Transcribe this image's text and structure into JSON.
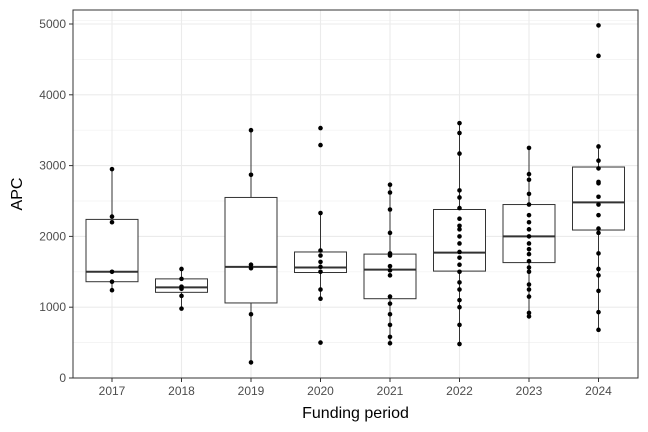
{
  "chart_data": {
    "type": "box",
    "title": "",
    "xlabel": "Funding period",
    "ylabel": "APC",
    "ylim": [
      0,
      5100
    ],
    "yticks": [
      0,
      1000,
      2000,
      3000,
      4000,
      5000
    ],
    "grid": true,
    "categories": [
      "2017",
      "2018",
      "2019",
      "2020",
      "2021",
      "2022",
      "2023",
      "2024"
    ],
    "boxes": [
      {
        "category": "2017",
        "q1": 1360,
        "median": 1500,
        "q3": 2240,
        "whisker_low": 1240,
        "whisker_high": 2950
      },
      {
        "category": "2018",
        "q1": 1210,
        "median": 1280,
        "q3": 1400,
        "whisker_low": 980,
        "whisker_high": 1540
      },
      {
        "category": "2019",
        "q1": 1060,
        "median": 1570,
        "q3": 2550,
        "whisker_low": 220,
        "whisker_high": 3500
      },
      {
        "category": "2020",
        "q1": 1490,
        "median": 1560,
        "q3": 1780,
        "whisker_low": 1120,
        "whisker_high": 2330
      },
      {
        "category": "2021",
        "q1": 1120,
        "median": 1530,
        "q3": 1750,
        "whisker_low": 490,
        "whisker_high": 2730
      },
      {
        "category": "2022",
        "q1": 1510,
        "median": 1770,
        "q3": 2380,
        "whisker_low": 480,
        "whisker_high": 3600
      },
      {
        "category": "2023",
        "q1": 1630,
        "median": 2000,
        "q3": 2450,
        "whisker_low": 870,
        "whisker_high": 3250
      },
      {
        "category": "2024",
        "q1": 2090,
        "median": 2480,
        "q3": 2980,
        "whisker_low": 680,
        "whisker_high": 3270
      }
    ],
    "points": [
      {
        "category": "2017",
        "values": [
          1240,
          1360,
          1500,
          2200,
          2280,
          2950
        ]
      },
      {
        "category": "2018",
        "values": [
          980,
          1160,
          1260,
          1290,
          1400,
          1540
        ]
      },
      {
        "category": "2019",
        "values": [
          220,
          900,
          1550,
          1600,
          2870,
          3500
        ]
      },
      {
        "category": "2020",
        "values": [
          500,
          1120,
          1250,
          1500,
          1570,
          1640,
          1730,
          1800,
          2330,
          3290,
          3530
        ]
      },
      {
        "category": "2021",
        "values": [
          490,
          580,
          750,
          900,
          1050,
          1150,
          1450,
          1520,
          1580,
          1730,
          1760,
          2050,
          2380,
          2620,
          2730
        ]
      },
      {
        "category": "2022",
        "values": [
          480,
          750,
          1000,
          1100,
          1250,
          1350,
          1500,
          1600,
          1700,
          1780,
          1900,
          2000,
          2100,
          2150,
          2250,
          2400,
          2550,
          2650,
          3170,
          3460,
          3600
        ]
      },
      {
        "category": "2023",
        "values": [
          870,
          920,
          1150,
          1250,
          1320,
          1500,
          1560,
          1650,
          1750,
          1820,
          1900,
          2000,
          2100,
          2200,
          2300,
          2450,
          2600,
          2800,
          2880,
          3250
        ]
      },
      {
        "category": "2024",
        "values": [
          680,
          930,
          1230,
          1450,
          1540,
          1760,
          2050,
          2110,
          2300,
          2450,
          2560,
          2750,
          2770,
          2960,
          3070,
          3270,
          4550,
          4980
        ]
      }
    ]
  }
}
